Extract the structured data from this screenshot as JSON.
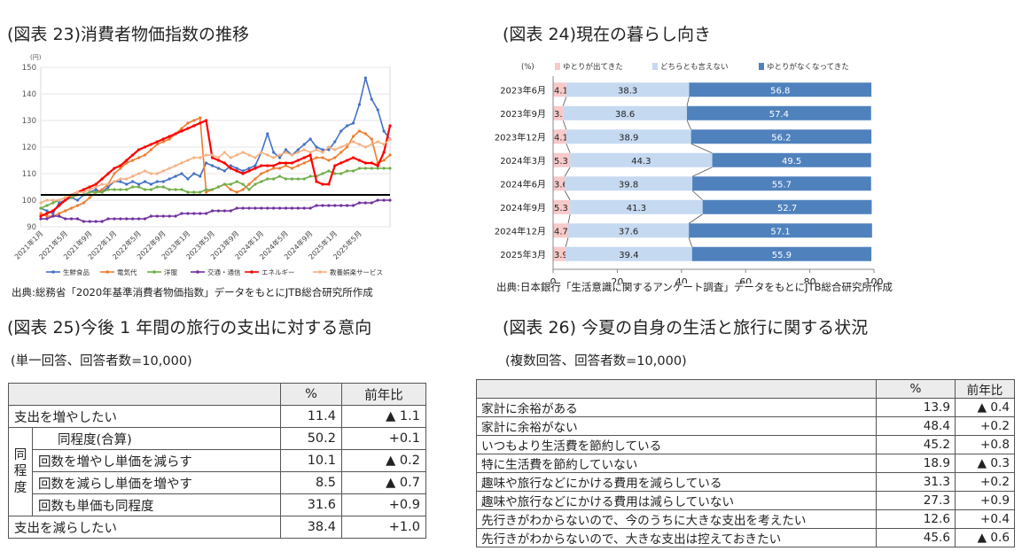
{
  "fig23": {
    "title": "(図表 23)消費者物価指数の推移",
    "source": "出典:総務省「2020年基準消費者物価指数」データをもとにJTB総合研究所作成"
  },
  "fig24": {
    "title": "(図表 24)現在の暮らし向き",
    "source": "出典:日本銀行「生活意識に関するアンケート調査」データをもとにJTB総合研究所作成"
  },
  "fig25": {
    "title": "(図表 25)今後 1 年間の旅行の支出に対する意向",
    "subtitle": "(単一回答、回答者数=10,000)",
    "header": {
      "pct": "%",
      "yoy": "前年比"
    },
    "rows": [
      {
        "label": "支出を増やしたい",
        "pct": "11.4",
        "yoy": "▲ 1.1"
      },
      {
        "label": "同程度(合算)",
        "pct": "50.2",
        "yoy": "+0.1"
      },
      {
        "label": "回数を増やし単価を減らす",
        "pct": "10.1",
        "yoy": "▲ 0.2"
      },
      {
        "label": "回数を減らし単価を増やす",
        "pct": "8.5",
        "yoy": "▲ 0.7"
      },
      {
        "label": "回数も単価も同程度",
        "pct": "31.6",
        "yoy": "+0.9"
      },
      {
        "label": "支出を減らしたい",
        "pct": "38.4",
        "yoy": "+1.0"
      }
    ],
    "group_label": "同程度"
  },
  "fig26": {
    "title": "(図表 26) 今夏の自身の生活と旅行に関する状況",
    "subtitle": "(複数回答、回答者数=10,000)",
    "header": {
      "pct": "%",
      "yoy": "前年比"
    },
    "rows": [
      {
        "label": "家計に余裕がある",
        "pct": "13.9",
        "yoy": "▲ 0.4"
      },
      {
        "label": "家計に余裕がない",
        "pct": "48.4",
        "yoy": "+0.2"
      },
      {
        "label": "いつもより生活費を節約している",
        "pct": "45.2",
        "yoy": "+0.8"
      },
      {
        "label": "特に生活費を節約していない",
        "pct": "18.9",
        "yoy": "▲ 0.3"
      },
      {
        "label": "趣味や旅行などにかける費用を減らしている",
        "pct": "31.3",
        "yoy": "+0.2"
      },
      {
        "label": "趣味や旅行などにかける費用は減らしていない",
        "pct": "27.3",
        "yoy": "+0.9"
      },
      {
        "label": "先行きがわからないので、今のうちに大きな支出を考えたい",
        "pct": "12.6",
        "yoy": "+0.4"
      },
      {
        "label": "先行きがわからないので、大きな支出は控えておきたい",
        "pct": "45.6",
        "yoy": "▲ 0.6"
      }
    ]
  },
  "chart_data": [
    {
      "type": "line",
      "y_unit": "(円)",
      "ylim": [
        90,
        150
      ],
      "yticks": [
        90,
        100,
        110,
        120,
        130,
        140,
        150
      ],
      "reference_line": 102,
      "x_tick_labels": [
        "2021年1月",
        "2021年5月",
        "2021年9月",
        "2022年1月",
        "2022年5月",
        "2022年9月",
        "2023年1月",
        "2023年5月",
        "2023年9月",
        "2024年1月",
        "2024年5月",
        "2024年9月",
        "2025年1月",
        "2025年5月"
      ],
      "legend_position": "bottom",
      "series": [
        {
          "name": "生鮮食品",
          "color": "#4472c4",
          "values": [
            97,
            96,
            95,
            99,
            100,
            101,
            100,
            102,
            103,
            104,
            103,
            105,
            107,
            107,
            106,
            107,
            106,
            107,
            106,
            107,
            107,
            108,
            109,
            110,
            108,
            110,
            109,
            114,
            113,
            112,
            111,
            113,
            112,
            111,
            112,
            113,
            118,
            125,
            118,
            116,
            119,
            117,
            119,
            121,
            123,
            120,
            119,
            119,
            122,
            126,
            128,
            129,
            136,
            146,
            138,
            134,
            126,
            123
          ]
        },
        {
          "name": "電気代",
          "color": "#ed7d31",
          "values": [
            95,
            94,
            94,
            95,
            96,
            97,
            98,
            99,
            101,
            103,
            104,
            106,
            110,
            112,
            114,
            115,
            116,
            117,
            119,
            121,
            122,
            123,
            125,
            127,
            129,
            130,
            131,
            103,
            104,
            105,
            106,
            104,
            103,
            104,
            106,
            108,
            110,
            111,
            112,
            112,
            113,
            112,
            113,
            114,
            115,
            116,
            116,
            115,
            116,
            118,
            120,
            124,
            126,
            125,
            123,
            114,
            115,
            117
          ]
        },
        {
          "name": "洋服",
          "color": "#70ad47",
          "values": [
            97,
            98,
            99,
            100,
            101,
            101,
            102,
            102,
            103,
            103,
            103,
            104,
            104,
            104,
            104,
            105,
            105,
            104,
            104,
            105,
            105,
            104,
            104,
            104,
            103,
            103,
            103,
            104,
            104,
            105,
            106,
            106,
            107,
            106,
            104,
            106,
            107,
            108,
            108,
            109,
            108,
            108,
            108,
            108,
            109,
            109,
            110,
            111,
            110,
            110,
            111,
            111,
            112,
            112,
            112,
            112,
            112,
            112
          ]
        },
        {
          "name": "交通・通信",
          "color": "#7030a0",
          "values": [
            93,
            93,
            94,
            94,
            93,
            93,
            93,
            92,
            92,
            92,
            92,
            93,
            93,
            93,
            93,
            93,
            93,
            93,
            94,
            94,
            94,
            94,
            94,
            95,
            95,
            95,
            95,
            95,
            96,
            96,
            96,
            96,
            97,
            97,
            97,
            97,
            97,
            97,
            97,
            97,
            97,
            97,
            97,
            97,
            97,
            98,
            98,
            98,
            98,
            98,
            98,
            98,
            99,
            99,
            99,
            100,
            100,
            100
          ]
        },
        {
          "name": "エネルギー",
          "color": "#ff0000",
          "values": [
            94,
            95,
            96,
            98,
            100,
            102,
            103,
            104,
            105,
            106,
            108,
            110,
            112,
            113,
            115,
            117,
            119,
            120,
            121,
            122,
            123,
            124,
            125,
            126,
            127,
            128,
            129,
            130,
            116,
            115,
            114,
            112,
            111,
            110,
            111,
            112,
            113,
            113,
            113,
            114,
            114,
            114,
            115,
            116,
            117,
            107,
            106,
            106,
            113,
            114,
            115,
            116,
            115,
            114,
            114,
            113,
            118,
            128
          ]
        },
        {
          "name": "教養娯楽サービス",
          "color": "#f4b183",
          "values": [
            99,
            100,
            100,
            100,
            101,
            102,
            103,
            103,
            104,
            105,
            106,
            106,
            107,
            108,
            108,
            109,
            110,
            111,
            110,
            110,
            111,
            112,
            113,
            114,
            115,
            116,
            116,
            117,
            117,
            116,
            118,
            116,
            117,
            118,
            117,
            116,
            118,
            117,
            116,
            117,
            118,
            117,
            118,
            119,
            118,
            119,
            118,
            120,
            119,
            120,
            121,
            122,
            121,
            120,
            121,
            122,
            121,
            123
          ]
        }
      ]
    },
    {
      "type": "bar",
      "stacked": true,
      "orientation": "horizontal",
      "x_unit": "(%)",
      "xlim": [
        0,
        100
      ],
      "xticks": [
        0,
        20,
        40,
        60,
        80,
        100
      ],
      "categories": [
        "2023年6月",
        "2023年9月",
        "2023年12月",
        "2024年3月",
        "2024年6月",
        "2024年9月",
        "2024年12月",
        "2025年3月"
      ],
      "legend_position": "top",
      "series": [
        {
          "name": "ゆとりが出てきた",
          "color": "#f8c9c9",
          "values": [
            4.1,
            3.1,
            4.1,
            5.3,
            3.6,
            5.3,
            4.7,
            3.9
          ]
        },
        {
          "name": "どちらとも言えない",
          "color": "#c5d9f1",
          "values": [
            38.3,
            38.6,
            38.9,
            44.3,
            39.8,
            41.3,
            37.6,
            39.4
          ]
        },
        {
          "name": "ゆとりがなくなってきた",
          "color": "#4f81bd",
          "values": [
            56.8,
            57.4,
            56.2,
            49.5,
            55.7,
            52.7,
            57.1,
            55.9
          ]
        }
      ]
    }
  ]
}
